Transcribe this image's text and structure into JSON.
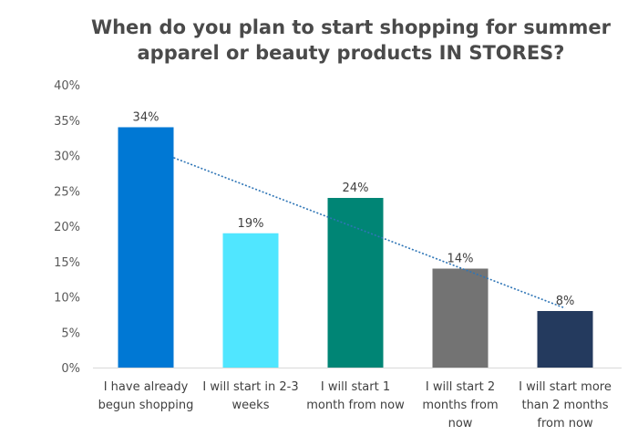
{
  "chart_data": {
    "type": "bar",
    "title": "When do you plan to start shopping for summer apparel or beauty products IN STORES?",
    "xlabel": "",
    "ylabel": "",
    "categories": [
      "I have already begun shopping",
      "I will start in 2-3 weeks",
      "I will start 1 month from now",
      "I will start 2 months from now",
      "I will start more than 2 months from now"
    ],
    "category_lines": [
      [
        "I have already",
        "begun shopping"
      ],
      [
        "I will start in 2-3",
        "weeks"
      ],
      [
        "I will start 1",
        "month from now"
      ],
      [
        "I will start 2",
        "months from",
        "now"
      ],
      [
        "I will start more",
        "than 2 months",
        "from now"
      ]
    ],
    "values": [
      34,
      19,
      24,
      14,
      8
    ],
    "data_labels": [
      "34%",
      "19%",
      "24%",
      "14%",
      "8%"
    ],
    "bar_colors": [
      "#0078D4",
      "#50E6FF",
      "#008575",
      "#737373",
      "#243A5E"
    ],
    "ylim": [
      0,
      40
    ],
    "yticks": [
      "0%",
      "5%",
      "10%",
      "15%",
      "20%",
      "25%",
      "30%",
      "35%",
      "40%"
    ],
    "grid": false,
    "legend": "none",
    "trendline": {
      "type": "linear",
      "style": "dotted",
      "color": "#2E75B6"
    }
  }
}
